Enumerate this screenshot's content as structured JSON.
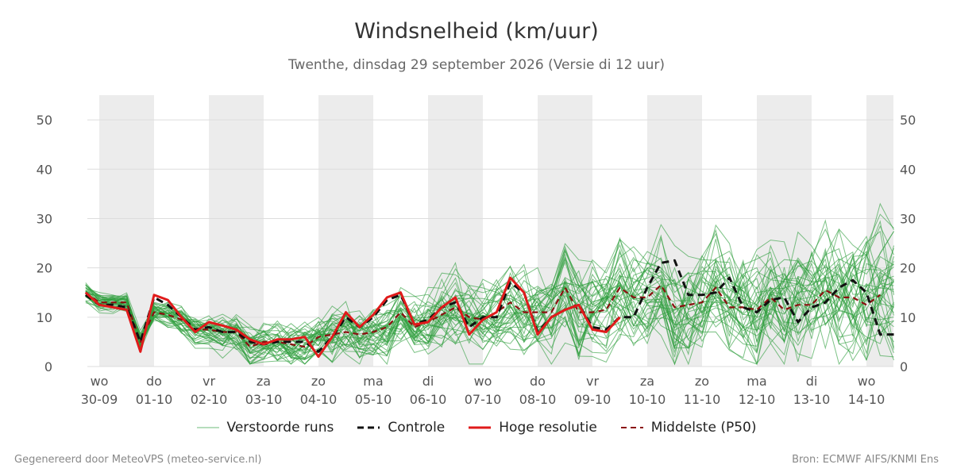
{
  "title": "Windsnelheid (km/uur)",
  "subtitle": "Twenthe, dinsdag 29 september 2026 (Versie di 12 uur)",
  "footer": {
    "left": "Gegenereerd door MeteoVPS (meteo-service.nl)",
    "right": "Bron: ECMWF AIFS/KNMI Ens"
  },
  "colors": {
    "ensemble": "#2e9e3e",
    "control": "#111111",
    "high_res": "#e01b1b",
    "median": "#8b1010",
    "band": "#ececec",
    "grid": "#dddddd"
  },
  "chart_data": {
    "type": "line",
    "y_ticks": [
      "0",
      "10",
      "20",
      "30",
      "40",
      "50"
    ],
    "ylim": [
      0,
      55
    ],
    "xlim": [
      -0.25,
      14.5
    ],
    "grid": true,
    "legend_position": "bottom",
    "x_tick_labels": [
      {
        "day": "wo",
        "date": "30-09"
      },
      {
        "day": "do",
        "date": "01-10"
      },
      {
        "day": "vr",
        "date": "02-10"
      },
      {
        "day": "za",
        "date": "03-10"
      },
      {
        "day": "zo",
        "date": "04-10"
      },
      {
        "day": "ma",
        "date": "05-10"
      },
      {
        "day": "di",
        "date": "06-10"
      },
      {
        "day": "wo",
        "date": "07-10"
      },
      {
        "day": "do",
        "date": "08-10"
      },
      {
        "day": "vr",
        "date": "09-10"
      },
      {
        "day": "za",
        "date": "10-10"
      },
      {
        "day": "zo",
        "date": "11-10"
      },
      {
        "day": "ma",
        "date": "12-10"
      },
      {
        "day": "di",
        "date": "13-10"
      },
      {
        "day": "wo",
        "date": "14-10"
      }
    ],
    "legend": [
      {
        "key": "ensemble",
        "label": "Verstoorde runs",
        "style": "thin"
      },
      {
        "key": "control",
        "label": "Controle",
        "style": "dashed"
      },
      {
        "key": "high_res",
        "label": "Hoge resolutie",
        "style": "solid"
      },
      {
        "key": "median",
        "label": "Middelste (P50)",
        "style": "dashed"
      }
    ],
    "x_step_days": 0.25,
    "x_start_day": -0.25,
    "series": [
      {
        "key": "high_res",
        "x_start": -0.25,
        "values": [
          15,
          12.5,
          12,
          11.5,
          3,
          14.5,
          13.5,
          10,
          7,
          9,
          8.3,
          7.5,
          5.5,
          4.5,
          5.5,
          5.5,
          6,
          2,
          6,
          11,
          8,
          10.5,
          14,
          15,
          8.5,
          9,
          12,
          14,
          6.5,
          9.5,
          11,
          18,
          15,
          6.5,
          10,
          11.5,
          12.5,
          7.5,
          7,
          10
        ]
      },
      {
        "key": "control",
        "x_start": -0.25,
        "values": [
          14.5,
          12.5,
          12.5,
          12,
          5,
          14,
          12.5,
          10,
          7.5,
          8,
          7,
          7,
          5,
          4.5,
          5,
          5,
          5,
          3,
          6,
          10,
          8,
          10,
          13.5,
          14.5,
          8.5,
          9.5,
          12,
          13,
          8,
          10,
          10,
          17,
          15,
          7,
          10,
          11.5,
          12.5,
          8,
          7.5,
          10,
          10,
          16,
          21,
          21.5,
          14.5,
          14.5,
          15,
          18,
          12,
          11,
          13.5,
          14,
          9,
          12,
          13,
          16,
          17.5,
          15,
          6.5,
          6.5
        ]
      },
      {
        "key": "median",
        "x_start": -0.25,
        "values": [
          15,
          13,
          13,
          13,
          5,
          11,
          10.5,
          9.5,
          7.5,
          7.5,
          7,
          7,
          4,
          5,
          5,
          4.5,
          4,
          6,
          6.5,
          7,
          6.5,
          7,
          8,
          11,
          8,
          9,
          10.5,
          12,
          10,
          9.5,
          11,
          13,
          11,
          11,
          11,
          16,
          11,
          11,
          11.5,
          16,
          14,
          14,
          16.5,
          12,
          12.5,
          13,
          16,
          12,
          12,
          11.5,
          14,
          11.5,
          12.5,
          12.5,
          15.5,
          14,
          14,
          12.5,
          14.5
        ]
      }
    ]
  }
}
